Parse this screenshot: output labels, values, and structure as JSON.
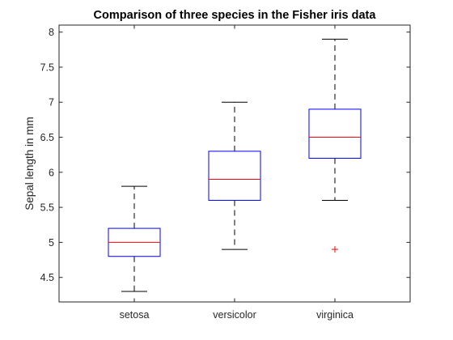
{
  "chart_data": {
    "type": "box",
    "title": "Comparison of three species in the Fisher iris data",
    "xlabel": "",
    "ylabel": "Sepal length in mm",
    "ylim": [
      4.15,
      8.1
    ],
    "yticks": [
      "4.5",
      "5",
      "5.5",
      "6",
      "6.5",
      "7",
      "7.5",
      "8"
    ],
    "grid": false,
    "colors": {
      "box": "#0000ff",
      "median": "#ff0000",
      "whisker": "#000000",
      "outlier": "#ff0000",
      "axes": "#262626"
    },
    "categories": [
      "setosa",
      "versicolor",
      "virginica"
    ],
    "boxes": [
      {
        "category": "setosa",
        "whisker_low": 4.3,
        "q1": 4.8,
        "median": 5.0,
        "q3": 5.2,
        "whisker_high": 5.8,
        "outliers": []
      },
      {
        "category": "versicolor",
        "whisker_low": 4.9,
        "q1": 5.6,
        "median": 5.9,
        "q3": 6.3,
        "whisker_high": 7.0,
        "outliers": []
      },
      {
        "category": "virginica",
        "whisker_low": 5.6,
        "q1": 6.2,
        "median": 6.5,
        "q3": 6.9,
        "whisker_high": 7.9,
        "outliers": [
          4.9
        ]
      }
    ]
  }
}
